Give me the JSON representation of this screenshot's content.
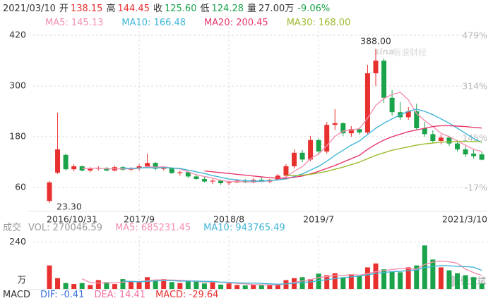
{
  "quote": {
    "date": "2021/03/10",
    "fields": [
      {
        "label": "开",
        "value": "138.15",
        "color": "#e8312f"
      },
      {
        "label": "高",
        "value": "144.45",
        "color": "#e8312f"
      },
      {
        "label": "收",
        "value": "125.60",
        "color": "#1aa34a"
      },
      {
        "label": "低",
        "value": "124.28",
        "color": "#1aa34a"
      },
      {
        "label": "量",
        "value": "27.00万",
        "color": "#333333"
      }
    ],
    "change": "-9.06%",
    "change_color": "#1aa34a"
  },
  "watermark": [
    "sina",
    "新浪财经"
  ],
  "corner_mark": "张宝斌",
  "macd": {
    "title": "MACD",
    "items": [
      {
        "text": "DIF: -0.41",
        "color": "#3a6fd8"
      },
      {
        "text": "DEA: 14.41",
        "color": "#f06ea0"
      },
      {
        "text": "MACD: -29.64",
        "color": "#e8312f"
      }
    ]
  },
  "chart_data": [
    {
      "type": "candlestick",
      "up_color": "#e8312f",
      "down_color": "#1aa34a",
      "categories": [
        "2016/10/31",
        null,
        null,
        null,
        null,
        null,
        null,
        null,
        null,
        null,
        null,
        "2017/9",
        null,
        null,
        null,
        null,
        null,
        null,
        null,
        null,
        null,
        null,
        "2018/8",
        null,
        null,
        null,
        null,
        null,
        null,
        null,
        null,
        null,
        null,
        "2019/7",
        null,
        null,
        null,
        null,
        null,
        null,
        null,
        null,
        null,
        null,
        null,
        null,
        null,
        null,
        null,
        null,
        null,
        null,
        null,
        "2021/3/10"
      ],
      "open": [
        28,
        95,
        137,
        103,
        110,
        100,
        104,
        106,
        100,
        108,
        102,
        106,
        110,
        118,
        104,
        106,
        94,
        96,
        86,
        80,
        74,
        76,
        70,
        72,
        76,
        72,
        78,
        74,
        78,
        88,
        110,
        142,
        126,
        172,
        145,
        208,
        212,
        188,
        198,
        190,
        330,
        360,
        272,
        238,
        226,
        240,
        200,
        186,
        170,
        178,
        164,
        150,
        140,
        138.15
      ],
      "high": [
        75,
        237,
        140,
        115,
        112,
        108,
        110,
        108,
        112,
        110,
        108,
        115,
        140,
        120,
        110,
        108,
        100,
        98,
        92,
        85,
        80,
        78,
        74,
        80,
        80,
        82,
        84,
        80,
        92,
        115,
        150,
        148,
        182,
        176,
        215,
        245,
        214,
        205,
        202,
        350,
        388,
        365,
        290,
        262,
        250,
        258,
        215,
        195,
        185,
        182,
        172,
        158,
        150,
        144.45
      ],
      "low": [
        23.3,
        92,
        100,
        98,
        98,
        96,
        100,
        98,
        98,
        100,
        99,
        100,
        105,
        100,
        100,
        92,
        88,
        82,
        78,
        72,
        68,
        66,
        65,
        70,
        70,
        70,
        72,
        70,
        76,
        86,
        105,
        120,
        122,
        138,
        140,
        196,
        182,
        180,
        185,
        185,
        300,
        260,
        230,
        220,
        220,
        195,
        180,
        165,
        162,
        158,
        145,
        132,
        128,
        124.28
      ],
      "close": [
        72,
        150,
        103,
        110,
        100,
        104,
        106,
        100,
        108,
        102,
        106,
        110,
        118,
        104,
        106,
        94,
        96,
        86,
        80,
        74,
        76,
        70,
        72,
        76,
        72,
        78,
        74,
        78,
        88,
        110,
        142,
        126,
        172,
        145,
        208,
        212,
        188,
        198,
        190,
        330,
        360,
        272,
        238,
        226,
        240,
        200,
        186,
        170,
        178,
        164,
        150,
        138,
        134,
        125.6
      ],
      "series": [
        {
          "name": "MA5: 145.13",
          "color": "#f490b0",
          "values": [
            null,
            null,
            null,
            null,
            105,
            105,
            106,
            104,
            104,
            104,
            104,
            105,
            109,
            108,
            109,
            106,
            104,
            97,
            90,
            86,
            82,
            77,
            74,
            74,
            73,
            74,
            74,
            76,
            78,
            85,
            98,
            109,
            128,
            139,
            159,
            181,
            193,
            196,
            199,
            224,
            254,
            270,
            280,
            285,
            267,
            235,
            218,
            204,
            188,
            180,
            170,
            160,
            150,
            145.13
          ]
        },
        {
          "name": "MA10: 166.48",
          "color": "#3fb6d7",
          "values": [
            null,
            null,
            null,
            null,
            null,
            null,
            null,
            null,
            null,
            106,
            105,
            106,
            107,
            106,
            107,
            106,
            105,
            101,
            97,
            93,
            88,
            84,
            80,
            78,
            76,
            75,
            75,
            76,
            78,
            80,
            86,
            92,
            101,
            110,
            122,
            136,
            148,
            160,
            170,
            185,
            200,
            212,
            222,
            232,
            240,
            245,
            240,
            232,
            222,
            212,
            200,
            188,
            176,
            166.48
          ]
        },
        {
          "name": "MA20: 200.45",
          "color": "#e8386b",
          "values": [
            null,
            null,
            null,
            null,
            null,
            null,
            null,
            null,
            null,
            null,
            null,
            null,
            null,
            null,
            null,
            null,
            null,
            null,
            null,
            99,
            97,
            95,
            93,
            91,
            89,
            87,
            85,
            83,
            82,
            82,
            84,
            87,
            92,
            98,
            105,
            112,
            120,
            128,
            136,
            150,
            162,
            172,
            180,
            186,
            192,
            196,
            200,
            204,
            206,
            206,
            205,
            204,
            202,
            200.45
          ]
        },
        {
          "name": "MA30: 168.00",
          "color": "#9abb2f",
          "values": [
            null,
            null,
            null,
            null,
            null,
            null,
            null,
            null,
            null,
            null,
            null,
            null,
            null,
            null,
            null,
            null,
            null,
            null,
            null,
            null,
            null,
            null,
            null,
            null,
            null,
            null,
            null,
            null,
            null,
            88,
            88,
            89,
            91,
            94,
            98,
            103,
            108,
            114,
            120,
            128,
            136,
            142,
            148,
            152,
            156,
            160,
            163,
            165,
            167,
            168,
            169,
            169,
            168.5,
            168
          ]
        }
      ],
      "ylim": [
        20,
        440
      ],
      "yticks": [
        60,
        180,
        300,
        420
      ],
      "y2lim": [
        -72.4,
        506.9
      ],
      "y2ticks": [
        {
          "value": -17,
          "label": "-17%"
        },
        {
          "value": 145,
          "label": "145%"
        },
        {
          "value": 314,
          "label": "314%"
        },
        {
          "value": 479,
          "label": "479%"
        }
      ],
      "annotations": [
        "388.00",
        "23.30"
      ],
      "grid": true
    },
    {
      "type": "bar",
      "title": "成交",
      "vol_label": "VOL: 270046.59",
      "unit": "万",
      "values": [
        120,
        55,
        30,
        25,
        30,
        20,
        45,
        35,
        25,
        50,
        40,
        35,
        60,
        45,
        50,
        35,
        30,
        38,
        42,
        28,
        40,
        22,
        28,
        20,
        18,
        22,
        18,
        20,
        25,
        45,
        55,
        60,
        50,
        78,
        70,
        80,
        60,
        75,
        65,
        110,
        130,
        100,
        90,
        85,
        110,
        120,
        222,
        150,
        110,
        95,
        80,
        70,
        60,
        27
      ],
      "series": [
        {
          "name": "MA5: 685231.45",
          "color": "#f490b0",
          "values": [
            null,
            null,
            null,
            null,
            52,
            32,
            30,
            31,
            31,
            35,
            39,
            37,
            42,
            46,
            46,
            45,
            44,
            42,
            39,
            35,
            36,
            34,
            32,
            28,
            26,
            22,
            21,
            20,
            21,
            26,
            33,
            41,
            47,
            58,
            63,
            68,
            68,
            73,
            70,
            78,
            88,
            94,
            99,
            104,
            103,
            101,
            125,
            137,
            142,
            139,
            131,
            101,
            83,
            68.5
          ]
        },
        {
          "name": "MA10: 943765.49",
          "color": "#3fb6d7",
          "values": [
            null,
            null,
            null,
            null,
            null,
            null,
            null,
            null,
            null,
            40,
            38,
            36,
            39,
            41,
            42,
            42,
            40,
            40,
            40,
            39,
            38,
            35,
            34,
            31,
            30,
            30,
            28,
            26,
            24,
            26,
            29,
            33,
            36,
            42,
            47,
            53,
            57,
            62,
            66,
            72,
            79,
            84,
            88,
            90,
            94,
            97,
            109,
            115,
            119,
            118,
            115,
            114,
            111,
            94.4
          ]
        }
      ],
      "ylim": [
        0,
        270
      ],
      "yticks": [
        240
      ],
      "grid": true
    }
  ]
}
